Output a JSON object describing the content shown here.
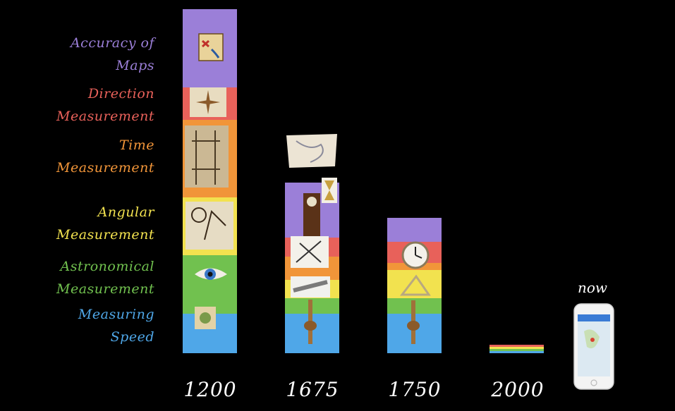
{
  "chart_data": {
    "type": "bar",
    "stacked": true,
    "categories": [
      "1200",
      "1675",
      "1750",
      "2000"
    ],
    "series": [
      {
        "name": "Measuring Speed",
        "color": "#4fa7e8",
        "values": [
          56,
          56,
          56,
          3
        ]
      },
      {
        "name": "Astronomical Measurement",
        "color": "#71c14f",
        "values": [
          83,
          22,
          22,
          3
        ]
      },
      {
        "name": "Angular Measurement",
        "color": "#f2e24f",
        "values": [
          82,
          26,
          40,
          3
        ]
      },
      {
        "name": "Time Measurement",
        "color": "#f19539",
        "values": [
          110,
          33,
          10,
          0
        ]
      },
      {
        "name": "Direction Measurement",
        "color": "#e8615a",
        "values": [
          46,
          27,
          30,
          3
        ]
      },
      {
        "name": "Accuracy of Maps",
        "color": "#9b7fd8",
        "values": [
          111,
          78,
          34,
          0
        ]
      }
    ],
    "legend_position": "left",
    "grid": false,
    "annotation": "now"
  },
  "legend_lines": [
    {
      "color": "#9b7fd8",
      "lines": [
        "Accuracy of",
        "Maps"
      ]
    },
    {
      "color": "#e8615a",
      "lines": [
        "Direction",
        "Measurement"
      ]
    },
    {
      "color": "#f19539",
      "lines": [
        "Time",
        "Measurement"
      ]
    },
    {
      "color": "#f2e24f",
      "lines": [
        "Angular",
        "Measurement"
      ]
    },
    {
      "color": "#71c14f",
      "lines": [
        "Astronomical",
        "Measurement"
      ]
    },
    {
      "color": "#4fa7e8",
      "lines": [
        "Measuring",
        "Speed"
      ]
    }
  ],
  "icons": [
    "treasure-map-icon",
    "compass-rose-icon",
    "water-clock-icon",
    "astrolabe-engraving-icon",
    "eye-icon",
    "log-line-icon",
    "parchment-map-icon",
    "hourglass-icon",
    "grandfather-clock-icon",
    "sextant-icon",
    "telescope-icon",
    "knotted-rope-icon",
    "pocket-watch-icon",
    "smartphone-map-icon"
  ]
}
